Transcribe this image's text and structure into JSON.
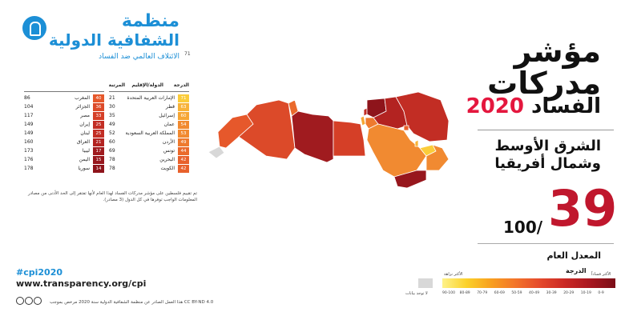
{
  "logo": {
    "name_line1": "منظمة",
    "name_line2": "الشفافية الدولية",
    "tagline": "الائتلاف العالمي ضد الفساد"
  },
  "page_number": "71",
  "title": {
    "line1": "مؤشر",
    "line2": "مدركات",
    "line3_word": "الفساد",
    "line3_year": "2020",
    "region": [
      "الشرق الأوسط",
      "وشمال أفريقيا"
    ]
  },
  "average": {
    "score": "39",
    "out_of": "100/",
    "label": "المعدل العام"
  },
  "table": {
    "headers": {
      "score": "الدرجة",
      "country": "الدولة/الإقليم",
      "rank": "المرتبة"
    },
    "right_column": [
      {
        "country": "الإمارات العربية المتحدة",
        "score": "71",
        "rank": "21",
        "color": "#fbcc3a"
      },
      {
        "country": "قطر",
        "score": "63",
        "rank": "30",
        "color": "#f8b338"
      },
      {
        "country": "إسرائيل",
        "score": "60",
        "rank": "35",
        "color": "#f6a634"
      },
      {
        "country": "عمان",
        "score": "54",
        "rank": "49",
        "color": "#f18a31"
      },
      {
        "country": "المملكة العربية السعودية",
        "score": "53",
        "rank": "52",
        "color": "#f18a31"
      },
      {
        "country": "الأردن",
        "score": "49",
        "rank": "60",
        "color": "#ee7a2e"
      },
      {
        "country": "تونس",
        "score": "44",
        "rank": "69",
        "color": "#ea6a2c"
      },
      {
        "country": "البحرين",
        "score": "42",
        "rank": "78",
        "color": "#e8612c"
      },
      {
        "country": "الكويت",
        "score": "42",
        "rank": "78",
        "color": "#e8612c"
      }
    ],
    "left_column": [
      {
        "country": "المغرب",
        "score": "40",
        "rank": "86",
        "color": "#e6582b"
      },
      {
        "country": "الجزائر",
        "score": "36",
        "rank": "104",
        "color": "#dc4a29"
      },
      {
        "country": "مصر",
        "score": "33",
        "rank": "117",
        "color": "#d53f27"
      },
      {
        "country": "إيران",
        "score": "25",
        "rank": "149",
        "color": "#c22d24"
      },
      {
        "country": "لبنان",
        "score": "25",
        "rank": "149",
        "color": "#c22d24"
      },
      {
        "country": "العراق",
        "score": "21",
        "rank": "160",
        "color": "#b32321"
      },
      {
        "country": "ليبيا",
        "score": "17",
        "rank": "173",
        "color": "#a01b1f"
      },
      {
        "country": "اليمن",
        "score": "15",
        "rank": "176",
        "color": "#97171d"
      },
      {
        "country": "سوريا",
        "score": "14",
        "rank": "178",
        "color": "#8e141b"
      }
    ]
  },
  "footnote": "تم تقييم فلسطين على مؤشر مدركات الفساد لهذا العام لأنها تفتقر إلى الحد الأدنى من مصادر المعلومات الواجب توفرها في كل الدول (3 مصادر).",
  "footer": {
    "hashtag": "#cpi2020",
    "url": "www.transparency.org/cpi",
    "license": "هذا العمل الصادر عن منظمة الشفافية الدولية سنة 2020 مرخص بموجب CC BY-ND 4.0"
  },
  "legend": {
    "title": "الدرجة",
    "high_label": "الأكثر نزاهة",
    "low_label": "الأكثر فساداً",
    "na_label": "لا توجد بيانات",
    "ranges": [
      "90-100",
      "80-89",
      "70-79",
      "60-69",
      "50-59",
      "40-49",
      "30-39",
      "20-29",
      "10-19",
      "0-9"
    ],
    "colors": {
      "na": "#d8d8d8"
    }
  },
  "map": {
    "colors": {
      "morocco": "#e6582b",
      "algeria": "#dc4a29",
      "tunisia": "#ea6a2c",
      "libya": "#a01b1f",
      "egypt": "#d53f27",
      "israel": "#f6a634",
      "lebanon": "#c22d24",
      "syria": "#8e141b",
      "iraq": "#b32321",
      "iran": "#c22d24",
      "jordan": "#ee7a2e",
      "saudi": "#f18a31",
      "kuwait": "#e8612c",
      "qatar": "#f8b338",
      "uae": "#fbcc3a",
      "oman": "#f18a31",
      "yemen": "#97171d",
      "western_sahara": "#d8d8d8"
    }
  }
}
